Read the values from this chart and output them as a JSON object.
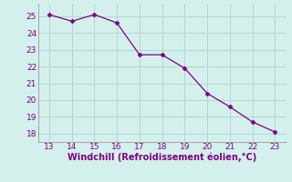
{
  "x": [
    13,
    14,
    15,
    16,
    17,
    18,
    19,
    20,
    21,
    22,
    23
  ],
  "y": [
    25.1,
    24.7,
    25.1,
    24.6,
    22.7,
    22.7,
    21.9,
    20.4,
    19.6,
    18.7,
    18.1
  ],
  "line_color": "#800080",
  "marker": "D",
  "marker_size": 2.5,
  "bg_color": "#d4f0ec",
  "grid_color": "#b0d8d4",
  "xlabel": "Windchill (Refroidissement éolien,°C)",
  "xlabel_color": "#800080",
  "xlabel_fontsize": 7,
  "tick_color": "#800080",
  "tick_fontsize": 6.5,
  "xlim": [
    12.5,
    23.5
  ],
  "ylim": [
    17.5,
    25.75
  ],
  "yticks": [
    18,
    19,
    20,
    21,
    22,
    23,
    24,
    25
  ],
  "xticks": [
    13,
    14,
    15,
    16,
    17,
    18,
    19,
    20,
    21,
    22,
    23
  ]
}
